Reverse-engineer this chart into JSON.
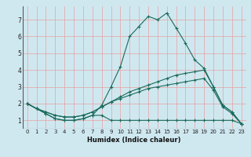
{
  "xlabel": "Humidex (Indice chaleur)",
  "bg_color": "#cfe8f0",
  "grid_color": "#e8a0a0",
  "line_color": "#1a6b5a",
  "xlim": [
    -0.5,
    23.5
  ],
  "ylim": [
    0.5,
    7.8
  ],
  "xticks": [
    0,
    1,
    2,
    3,
    4,
    5,
    6,
    7,
    8,
    9,
    10,
    11,
    12,
    13,
    14,
    15,
    16,
    17,
    18,
    19,
    20,
    21,
    22,
    23
  ],
  "yticks": [
    1,
    2,
    3,
    4,
    5,
    6,
    7
  ],
  "series": [
    {
      "x": [
        0,
        1,
        2,
        3,
        4,
        5,
        6,
        7,
        8,
        9,
        10,
        11,
        12,
        13,
        14,
        15,
        16,
        17,
        18,
        19,
        20,
        21,
        22,
        23
      ],
      "y": [
        2.0,
        1.7,
        1.4,
        1.1,
        1.0,
        1.0,
        1.1,
        1.3,
        1.3,
        1.0,
        1.0,
        1.0,
        1.0,
        1.0,
        1.0,
        1.0,
        1.0,
        1.0,
        1.0,
        1.0,
        1.0,
        1.0,
        1.0,
        0.8
      ]
    },
    {
      "x": [
        0,
        1,
        2,
        3,
        4,
        5,
        6,
        7,
        8,
        9,
        10,
        11,
        12,
        13,
        14,
        15,
        16,
        17,
        18,
        19,
        20,
        21,
        22,
        23
      ],
      "y": [
        2.0,
        1.7,
        1.4,
        1.1,
        1.0,
        1.0,
        1.1,
        1.3,
        1.9,
        3.0,
        4.2,
        6.0,
        6.6,
        7.2,
        7.0,
        7.4,
        6.5,
        5.6,
        4.6,
        4.1,
        3.0,
        1.9,
        1.5,
        0.8
      ]
    },
    {
      "x": [
        0,
        1,
        2,
        3,
        4,
        5,
        6,
        7,
        8,
        9,
        10,
        11,
        12,
        13,
        14,
        15,
        16,
        17,
        18,
        19,
        20,
        21,
        22,
        23
      ],
      "y": [
        2.0,
        1.7,
        1.5,
        1.3,
        1.2,
        1.2,
        1.3,
        1.5,
        1.8,
        2.1,
        2.4,
        2.7,
        2.9,
        3.1,
        3.3,
        3.5,
        3.7,
        3.8,
        3.9,
        4.0,
        3.0,
        1.9,
        1.5,
        0.8
      ]
    },
    {
      "x": [
        0,
        1,
        2,
        3,
        4,
        5,
        6,
        7,
        8,
        9,
        10,
        11,
        12,
        13,
        14,
        15,
        16,
        17,
        18,
        19,
        20,
        21,
        22,
        23
      ],
      "y": [
        2.0,
        1.7,
        1.5,
        1.3,
        1.2,
        1.2,
        1.3,
        1.5,
        1.8,
        2.1,
        2.3,
        2.5,
        2.7,
        2.9,
        3.0,
        3.1,
        3.2,
        3.3,
        3.4,
        3.5,
        2.8,
        1.8,
        1.4,
        0.8
      ]
    }
  ]
}
